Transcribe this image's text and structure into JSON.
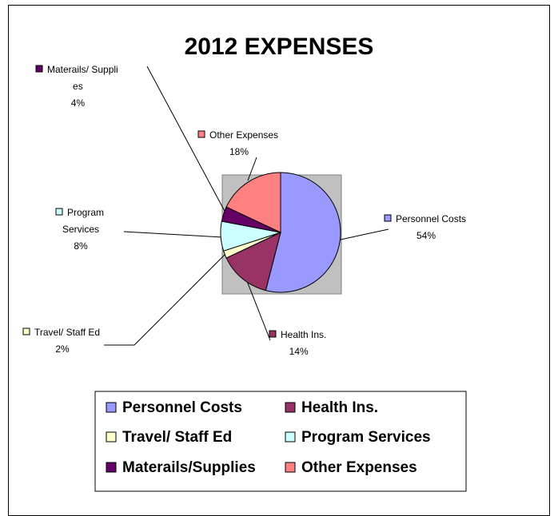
{
  "chart_data": {
    "type": "pie",
    "title": "2012 EXPENSES",
    "slices": [
      {
        "name": "Personnel Costs",
        "value": 54,
        "label_lines": [
          "Personnel Costs",
          "54%"
        ],
        "color": "#9999ff"
      },
      {
        "name": "Health Ins.",
        "value": 14,
        "label_lines": [
          "Health Ins.",
          "14%"
        ],
        "color": "#993366"
      },
      {
        "name": "Travel/ Staff Ed",
        "value": 2,
        "label_lines": [
          "Travel/ Staff Ed",
          "2%"
        ],
        "color": "#ffffcc"
      },
      {
        "name": "Program Services",
        "value": 8,
        "label_lines": [
          "Program",
          "Services",
          "8%"
        ],
        "color": "#ccffff"
      },
      {
        "name": "Materails/Supplies",
        "value": 4,
        "label_lines": [
          "Materails/ Suppli",
          "es",
          "4%"
        ],
        "color": "#660066"
      },
      {
        "name": "Other Expenses",
        "value": 18,
        "label_lines": [
          "Other Expenses",
          "18%"
        ],
        "color": "#ff8080"
      }
    ],
    "legend": {
      "placement": "bottom",
      "entries": [
        "Personnel Costs",
        "Health Ins.",
        "Travel/ Staff Ed",
        "Program Services",
        "Materails/Supplies",
        "Other Expenses"
      ]
    },
    "plot_area_color": "#c0c0c0"
  }
}
